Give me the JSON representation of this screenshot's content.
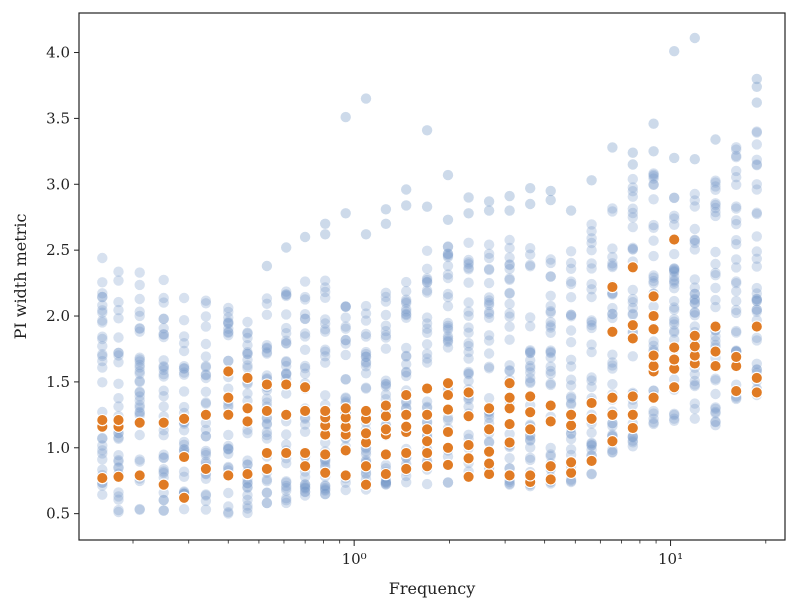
{
  "chart_data": {
    "type": "scatter",
    "xlabel": "Frequency",
    "ylabel": "PI width metric",
    "x_scale": "log",
    "xlim": [
      0.135,
      23
    ],
    "ylim": [
      0.3,
      4.3
    ],
    "x_major_ticks": [
      1,
      10
    ],
    "x_tick_labels": [
      "10⁰",
      "10¹"
    ],
    "y_ticks": [
      0.5,
      1.0,
      1.5,
      2.0,
      2.5,
      3.0,
      3.5,
      4.0
    ],
    "y_tick_labels": [
      "0.5",
      "1.0",
      "1.5",
      "2.0",
      "2.5",
      "3.0",
      "3.5",
      "4.0"
    ],
    "grid": false,
    "legend": false,
    "colors": {
      "background_series": "#6f95c4",
      "highlight_series": "#e07b24"
    },
    "series": [
      {
        "role": "background",
        "columns": [
          {
            "x": 0.16,
            "y_min": 0.52,
            "y_max": 2.45,
            "outliers": []
          },
          {
            "x": 0.18,
            "y_min": 0.51,
            "y_max": 2.4,
            "outliers": []
          },
          {
            "x": 0.21,
            "y_min": 0.52,
            "y_max": 2.34,
            "outliers": []
          },
          {
            "x": 0.25,
            "y_min": 0.52,
            "y_max": 2.28,
            "outliers": []
          },
          {
            "x": 0.29,
            "y_min": 0.53,
            "y_max": 2.2,
            "outliers": []
          },
          {
            "x": 0.34,
            "y_min": 0.51,
            "y_max": 2.15,
            "outliers": []
          },
          {
            "x": 0.4,
            "y_min": 0.48,
            "y_max": 2.08,
            "outliers": []
          },
          {
            "x": 0.46,
            "y_min": 0.49,
            "y_max": 2.05,
            "outliers": []
          },
          {
            "x": 0.53,
            "y_min": 0.55,
            "y_max": 2.15,
            "outliers": [
              2.38
            ]
          },
          {
            "x": 0.61,
            "y_min": 0.58,
            "y_max": 2.2,
            "outliers": [
              2.52
            ]
          },
          {
            "x": 0.7,
            "y_min": 0.62,
            "y_max": 2.3,
            "outliers": [
              2.6
            ]
          },
          {
            "x": 0.81,
            "y_min": 0.64,
            "y_max": 2.35,
            "outliers": [
              2.62,
              2.7
            ]
          },
          {
            "x": 0.94,
            "y_min": 0.66,
            "y_max": 2.14,
            "outliers": [
              2.78,
              3.51
            ]
          },
          {
            "x": 1.09,
            "y_min": 0.68,
            "y_max": 2.15,
            "outliers": [
              2.62,
              3.65
            ]
          },
          {
            "x": 1.26,
            "y_min": 0.72,
            "y_max": 2.22,
            "outliers": [
              2.7,
              2.81
            ]
          },
          {
            "x": 1.46,
            "y_min": 0.72,
            "y_max": 2.45,
            "outliers": [
              2.84,
              2.96
            ]
          },
          {
            "x": 1.7,
            "y_min": 0.71,
            "y_max": 2.5,
            "outliers": [
              2.83,
              3.41
            ]
          },
          {
            "x": 1.98,
            "y_min": 0.73,
            "y_max": 2.55,
            "outliers": [
              2.73,
              3.07
            ]
          },
          {
            "x": 2.3,
            "y_min": 0.73,
            "y_max": 2.6,
            "outliers": [
              2.78,
              2.9
            ]
          },
          {
            "x": 2.67,
            "y_min": 0.73,
            "y_max": 2.62,
            "outliers": [
              2.8,
              2.87
            ]
          },
          {
            "x": 3.1,
            "y_min": 0.72,
            "y_max": 2.65,
            "outliers": [
              2.8,
              2.91
            ]
          },
          {
            "x": 3.6,
            "y_min": 0.7,
            "y_max": 2.67,
            "outliers": [
              2.85,
              2.97
            ]
          },
          {
            "x": 4.18,
            "y_min": 0.72,
            "y_max": 2.68,
            "outliers": [
              2.88,
              2.95
            ]
          },
          {
            "x": 4.85,
            "y_min": 0.74,
            "y_max": 2.6,
            "outliers": [
              2.8
            ]
          },
          {
            "x": 5.63,
            "y_min": 0.76,
            "y_max": 2.75,
            "outliers": [
              3.03
            ]
          },
          {
            "x": 6.55,
            "y_min": 0.95,
            "y_max": 3.0,
            "outliers": [
              3.28
            ]
          },
          {
            "x": 7.6,
            "y_min": 1.0,
            "y_max": 3.05,
            "outliers": [
              3.15,
              3.24
            ]
          },
          {
            "x": 8.84,
            "y_min": 1.15,
            "y_max": 3.15,
            "outliers": [
              3.25,
              3.46
            ]
          },
          {
            "x": 10.27,
            "y_min": 1.2,
            "y_max": 3.1,
            "outliers": [
              3.2,
              4.01
            ]
          },
          {
            "x": 11.93,
            "y_min": 1.22,
            "y_max": 3.05,
            "outliers": [
              3.19,
              4.11
            ]
          },
          {
            "x": 13.87,
            "y_min": 1.17,
            "y_max": 3.2,
            "outliers": [
              3.34
            ]
          },
          {
            "x": 16.12,
            "y_min": 1.3,
            "y_max": 3.36,
            "outliers": []
          },
          {
            "x": 18.73,
            "y_min": 1.35,
            "y_max": 3.5,
            "outliers": [
              3.62,
              3.74,
              3.8
            ]
          }
        ]
      },
      {
        "role": "highlight",
        "points": [
          {
            "x": 0.16,
            "y": [
              0.77,
              1.16,
              1.21
            ]
          },
          {
            "x": 0.18,
            "y": [
              0.78,
              1.16,
              1.21
            ]
          },
          {
            "x": 0.21,
            "y": [
              0.79,
              1.19
            ]
          },
          {
            "x": 0.25,
            "y": [
              0.72,
              1.19
            ]
          },
          {
            "x": 0.29,
            "y": [
              0.62,
              0.93,
              1.22
            ]
          },
          {
            "x": 0.34,
            "y": [
              0.84,
              1.25
            ]
          },
          {
            "x": 0.4,
            "y": [
              0.79,
              1.25,
              1.38,
              1.58
            ]
          },
          {
            "x": 0.46,
            "y": [
              0.8,
              1.2,
              1.3,
              1.53
            ]
          },
          {
            "x": 0.53,
            "y": [
              0.84,
              0.96,
              1.28,
              1.48
            ]
          },
          {
            "x": 0.61,
            "y": [
              0.96,
              1.25,
              1.48
            ]
          },
          {
            "x": 0.7,
            "y": [
              0.86,
              0.96,
              1.28,
              1.46
            ]
          },
          {
            "x": 0.81,
            "y": [
              0.81,
              0.95,
              1.1,
              1.17,
              1.23,
              1.28
            ]
          },
          {
            "x": 0.94,
            "y": [
              0.79,
              0.98,
              1.1,
              1.16,
              1.23,
              1.3
            ]
          },
          {
            "x": 1.09,
            "y": [
              0.72,
              0.86,
              1.04,
              1.11,
              1.22,
              1.28
            ]
          },
          {
            "x": 1.26,
            "y": [
              0.8,
              0.95,
              1.1,
              1.14,
              1.24,
              1.32
            ]
          },
          {
            "x": 1.46,
            "y": [
              0.84,
              0.96,
              1.12,
              1.16,
              1.25,
              1.4
            ]
          },
          {
            "x": 1.7,
            "y": [
              0.86,
              0.96,
              1.05,
              1.14,
              1.25,
              1.45
            ]
          },
          {
            "x": 1.98,
            "y": [
              0.87,
              1.0,
              1.12,
              1.29,
              1.4,
              1.49
            ]
          },
          {
            "x": 2.3,
            "y": [
              0.78,
              0.92,
              1.02,
              1.24,
              1.42
            ]
          },
          {
            "x": 2.67,
            "y": [
              0.8,
              0.88,
              0.97,
              1.14,
              1.3
            ]
          },
          {
            "x": 3.1,
            "y": [
              0.79,
              1.04,
              1.18,
              1.3,
              1.38,
              1.49
            ]
          },
          {
            "x": 3.6,
            "y": [
              0.74,
              0.79,
              1.14,
              1.27,
              1.39
            ]
          },
          {
            "x": 4.18,
            "y": [
              0.76,
              0.86,
              1.2,
              1.32
            ]
          },
          {
            "x": 4.85,
            "y": [
              0.81,
              0.89,
              1.17,
              1.25
            ]
          },
          {
            "x": 5.63,
            "y": [
              0.9,
              1.22,
              1.34
            ]
          },
          {
            "x": 6.55,
            "y": [
              1.05,
              1.25,
              1.38,
              1.88,
              2.22
            ]
          },
          {
            "x": 7.6,
            "y": [
              1.15,
              1.25,
              1.39,
              1.83,
              1.93,
              2.37
            ]
          },
          {
            "x": 8.84,
            "y": [
              1.38,
              1.58,
              1.62,
              1.7,
              1.9,
              2.0,
              2.15
            ]
          },
          {
            "x": 10.27,
            "y": [
              1.46,
              1.6,
              1.67,
              1.76,
              2.58
            ]
          },
          {
            "x": 11.93,
            "y": [
              1.64,
              1.7,
              1.77,
              1.85
            ]
          },
          {
            "x": 13.87,
            "y": [
              1.62,
              1.73,
              1.92
            ]
          },
          {
            "x": 16.12,
            "y": [
              1.43,
              1.62,
              1.69
            ]
          },
          {
            "x": 18.73,
            "y": [
              1.42,
              1.53,
              1.92
            ]
          }
        ]
      }
    ]
  }
}
